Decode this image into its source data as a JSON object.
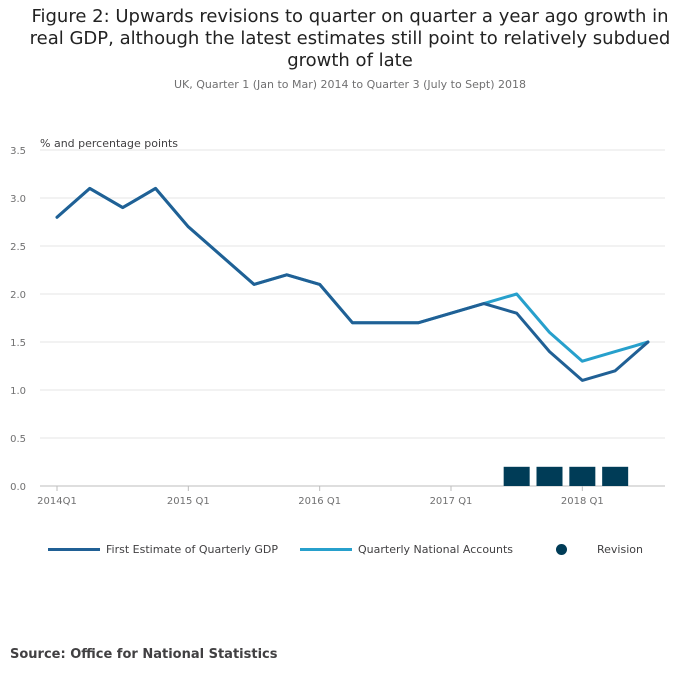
{
  "title": "Figure 2: Upwards revisions to quarter on quarter a year ago growth in real GDP, although the latest estimates still point to relatively subdued growth of late",
  "subtitle": "UK, Quarter 1 (Jan to Mar) 2014 to Quarter 3 (July to Sept) 2018",
  "source": "Source: Office for National Statistics",
  "colors": {
    "first_estimate": "#206095",
    "qna": "#27a0cc",
    "revision": "#003c57",
    "grid": "#e6e6e6",
    "axis_text": "#707071"
  },
  "chart_data": {
    "type": "line",
    "ylabel": "% and percentage points",
    "ylim": [
      0,
      3.5
    ],
    "yticks": [
      "0.0",
      "0.5",
      "1.0",
      "1.5",
      "2.0",
      "2.5",
      "3.0",
      "3.5"
    ],
    "x": [
      "2014 Q1",
      "2014 Q2",
      "2014 Q3",
      "2014 Q4",
      "2015 Q1",
      "2015 Q2",
      "2015 Q3",
      "2015 Q4",
      "2016 Q1",
      "2016 Q2",
      "2016 Q3",
      "2016 Q4",
      "2017 Q1",
      "2017 Q2",
      "2017 Q3",
      "2017 Q4",
      "2018 Q1",
      "2018 Q2",
      "2018 Q3"
    ],
    "xtick_labels": [
      {
        "label": "2014Q1",
        "index": 0
      },
      {
        "label": "2015 Q1",
        "index": 4
      },
      {
        "label": "2016 Q1",
        "index": 8
      },
      {
        "label": "2017 Q1",
        "index": 12
      },
      {
        "label": "2018 Q1",
        "index": 16
      }
    ],
    "grid": true,
    "legend_position": "bottom",
    "series": [
      {
        "name": "First Estimate of Quarterly GDP",
        "kind": "line",
        "values": [
          2.8,
          3.1,
          2.9,
          3.1,
          2.7,
          2.4,
          2.1,
          2.2,
          2.1,
          1.7,
          1.7,
          1.7,
          1.8,
          1.9,
          1.8,
          1.4,
          1.1,
          1.2,
          1.5
        ]
      },
      {
        "name": "Quarterly National Accounts",
        "kind": "line",
        "values": [
          2.8,
          3.1,
          2.9,
          3.1,
          2.7,
          2.4,
          2.1,
          2.2,
          2.1,
          1.7,
          1.7,
          1.7,
          1.8,
          1.9,
          2.0,
          1.6,
          1.3,
          1.4,
          1.5
        ]
      },
      {
        "name": "Revision",
        "kind": "bar",
        "values": [
          0,
          0,
          0,
          0,
          0,
          0,
          0,
          0,
          0,
          0,
          0,
          0,
          0,
          0,
          0.2,
          0.2,
          0.2,
          0.2,
          0
        ]
      }
    ]
  }
}
